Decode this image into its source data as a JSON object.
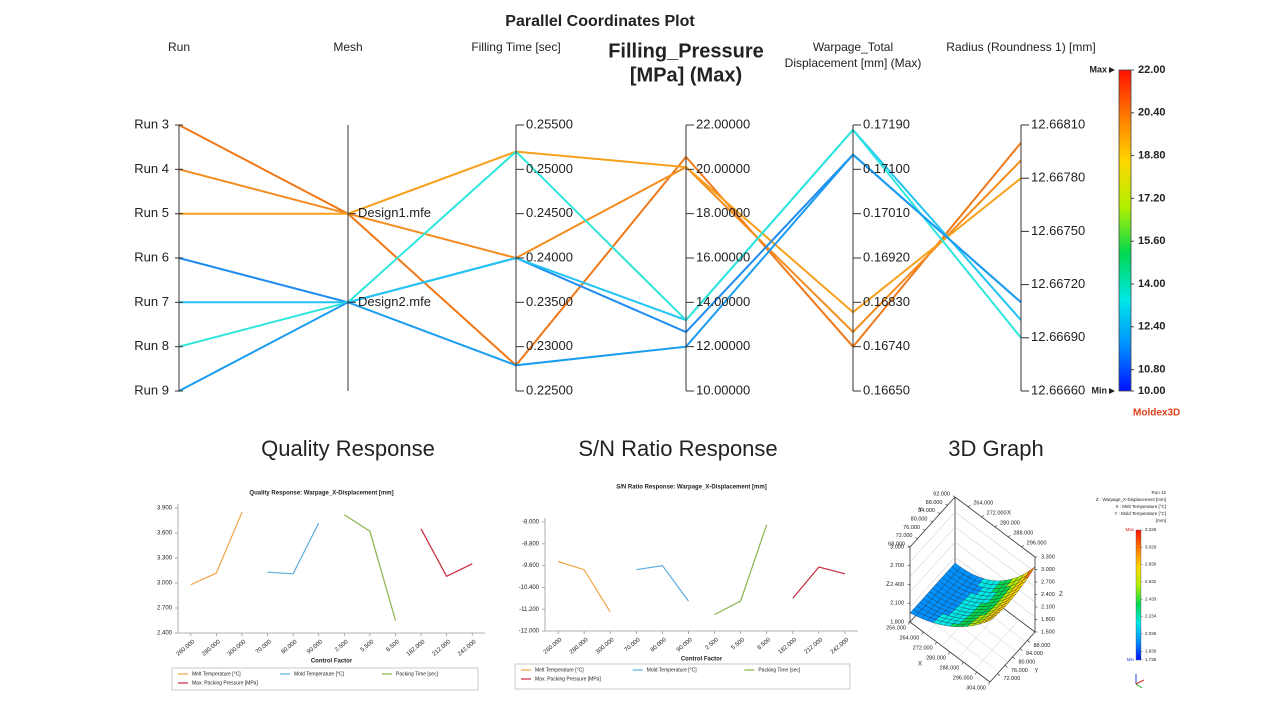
{
  "chart_data": [
    {
      "type": "parallel",
      "title": "Parallel Coordinates Plot",
      "axes": [
        {
          "label": [
            "Run"
          ],
          "categories": [
            "Run 3",
            "Run 4",
            "Run 5",
            "Run 6",
            "Run 7",
            "Run 8",
            "Run 9"
          ]
        },
        {
          "label": [
            "Mesh"
          ],
          "categories": [
            "Design1.mfe",
            "Design2.mfe"
          ]
        },
        {
          "label": [
            "Filling Time [sec]"
          ],
          "ylim": [
            0.225,
            0.255
          ],
          "yticks": [
            {
              "value": 0.255,
              "label": "0.25500"
            },
            {
              "value": 0.25,
              "label": "0.25000"
            },
            {
              "value": 0.245,
              "label": "0.24500"
            },
            {
              "value": 0.24,
              "label": "0.24000"
            },
            {
              "value": 0.235,
              "label": "0.23500"
            },
            {
              "value": 0.23,
              "label": "0.23000"
            },
            {
              "value": 0.225,
              "label": "0.22500"
            }
          ]
        },
        {
          "label": [
            "Filling_Pressure",
            "[MPa] (Max)"
          ],
          "selected": true,
          "ylim": [
            10,
            22
          ],
          "yticks": [
            {
              "value": 22,
              "label": "22.00000"
            },
            {
              "value": 20,
              "label": "20.00000"
            },
            {
              "value": 18,
              "label": "18.00000"
            },
            {
              "value": 16,
              "label": "16.00000"
            },
            {
              "value": 14,
              "label": "14.00000"
            },
            {
              "value": 12,
              "label": "12.00000"
            },
            {
              "value": 10,
              "label": "10.00000"
            }
          ]
        },
        {
          "label": [
            "Warpage_Total",
            "Displacement [mm] (Max)"
          ],
          "ylim": [
            0.1665,
            0.1719
          ],
          "yticks": [
            {
              "value": 0.1719,
              "label": "0.17190"
            },
            {
              "value": 0.171,
              "label": "0.17100"
            },
            {
              "value": 0.1701,
              "label": "0.17010"
            },
            {
              "value": 0.1692,
              "label": "0.16920"
            },
            {
              "value": 0.1683,
              "label": "0.16830"
            },
            {
              "value": 0.1674,
              "label": "0.16740"
            },
            {
              "value": 0.1665,
              "label": "0.16650"
            }
          ]
        },
        {
          "label": [
            "Radius (Roundness 1) [mm]"
          ],
          "ylim": [
            12.6666,
            12.6681
          ],
          "yticks": [
            {
              "value": 12.6681,
              "label": "12.66810"
            },
            {
              "value": 12.6678,
              "label": "12.66780"
            },
            {
              "value": 12.6675,
              "label": "12.66750"
            },
            {
              "value": 12.6672,
              "label": "12.66720"
            },
            {
              "value": 12.6669,
              "label": "12.66690"
            },
            {
              "value": 12.6666,
              "label": "12.66660"
            }
          ]
        }
      ],
      "lines": [
        {
          "color": "#f07818",
          "values": [
            "Run 3",
            "Design1.mfe",
            0.2279,
            20.56,
            0.1674,
            12.668
          ]
        },
        {
          "color": "#f48c1e",
          "values": [
            "Run 4",
            "Design1.mfe",
            0.24,
            20.1,
            0.1677,
            12.6679
          ]
        },
        {
          "color": "#f8a01c",
          "values": [
            "Run 5",
            "Design1.mfe",
            0.252,
            20.1,
            0.1681,
            12.6678
          ]
        },
        {
          "color": "#1e8cf0",
          "values": [
            "Run 6",
            "Design2.mfe",
            0.24,
            12.66,
            0.1713,
            12.6671
          ]
        },
        {
          "color": "#22c4f4",
          "values": [
            "Run 7",
            "Design2.mfe",
            0.24,
            13.2,
            0.1718,
            12.667
          ]
        },
        {
          "color": "#2ee6dc",
          "values": [
            "Run 8",
            "Design2.mfe",
            0.252,
            13.2,
            0.1718,
            12.6669
          ]
        },
        {
          "color": "#1a9cf0",
          "values": [
            "Run 9",
            "Design2.mfe",
            0.2279,
            12.0,
            0.1713,
            12.6671
          ]
        }
      ],
      "colorbar": {
        "max_label": "Max",
        "min_label": "Min",
        "lim": [
          10,
          22
        ],
        "ticks": [
          {
            "value": 22,
            "label": "22.00"
          },
          {
            "value": 20.4,
            "label": "20.40"
          },
          {
            "value": 18.8,
            "label": "18.80"
          },
          {
            "value": 17.2,
            "label": "17.20"
          },
          {
            "value": 15.6,
            "label": "15.60"
          },
          {
            "value": 14,
            "label": "14.00"
          },
          {
            "value": 12.4,
            "label": "12.40"
          },
          {
            "value": 10.8,
            "label": "10.80"
          },
          {
            "value": 10,
            "label": "10.00"
          }
        ],
        "colors": [
          "#0010ff",
          "#0090ff",
          "#00e8e8",
          "#00d850",
          "#b0f000",
          "#ffd800",
          "#ff7a00",
          "#ff1000"
        ]
      },
      "logo": "Moldex3D"
    },
    {
      "type": "line",
      "heading": "Quality Response",
      "title": "Quality Response: Warpage_X-Displacement [mm]",
      "x_label": "Control Factor",
      "categories": [
        "260.000",
        "280.000",
        "300.000",
        "70.000",
        "80.000",
        "90.000",
        "2.500",
        "5.500",
        "8.500",
        "182.000",
        "212.000",
        "242.000"
      ],
      "ylim": [
        2.4,
        3.9
      ],
      "yticks": [
        {
          "value": 2.4,
          "label": "2.400"
        },
        {
          "value": 2.7,
          "label": "2.700"
        },
        {
          "value": 3.0,
          "label": "3.000"
        },
        {
          "value": 3.3,
          "label": "3.300"
        },
        {
          "value": 3.6,
          "label": "3.600"
        },
        {
          "value": 3.9,
          "label": "3.900"
        }
      ],
      "series": [
        {
          "name": "Melt Temperature [°C]",
          "color": "#f3a446",
          "values": [
            2.98,
            3.12,
            3.85,
            null,
            null,
            null,
            null,
            null,
            null,
            null,
            null,
            null
          ]
        },
        {
          "name": "Mold Temperature [°C]",
          "color": "#5aaede",
          "values": [
            null,
            null,
            null,
            3.13,
            3.11,
            3.72,
            null,
            null,
            null,
            null,
            null,
            null
          ]
        },
        {
          "name": "Packing Time [sec]",
          "color": "#8ab448",
          "values": [
            null,
            null,
            null,
            null,
            null,
            null,
            3.82,
            3.62,
            2.55,
            null,
            null,
            null
          ]
        },
        {
          "name": "Max. Packing Pressure [MPa]",
          "color": "#c8283c",
          "values": [
            null,
            null,
            null,
            null,
            null,
            null,
            null,
            null,
            null,
            3.65,
            3.08,
            3.23
          ]
        }
      ]
    },
    {
      "type": "line",
      "heading": "S/N Ratio Response",
      "title": "S/N Ratio Response: Warpage_X-Displacement [mm]",
      "x_label": "Control Factor",
      "categories": [
        "260.000",
        "280.000",
        "300.000",
        "70.000",
        "80.000",
        "90.000",
        "2.500",
        "5.500",
        "8.500",
        "182.000",
        "212.000",
        "242.000"
      ],
      "ylim": [
        -12,
        -8
      ],
      "yticks": [
        {
          "value": -12,
          "label": "-12.000"
        },
        {
          "value": -11.2,
          "label": "-11.200"
        },
        {
          "value": -10.4,
          "label": "-10.400"
        },
        {
          "value": -9.6,
          "label": "-9.600"
        },
        {
          "value": -8.8,
          "label": "-8.800"
        },
        {
          "value": -8,
          "label": "-8.000"
        }
      ],
      "series": [
        {
          "name": "Melt Temperature [°C]",
          "color": "#f3a446",
          "values": [
            -9.45,
            -9.75,
            -11.3,
            null,
            null,
            null,
            null,
            null,
            null,
            null,
            null,
            null
          ]
        },
        {
          "name": "Mold Temperature [°C]",
          "color": "#5aaede",
          "values": [
            null,
            null,
            null,
            -9.75,
            -9.6,
            -10.9,
            null,
            null,
            null,
            null,
            null,
            null
          ]
        },
        {
          "name": "Packing Time [sec]",
          "color": "#8ab448",
          "values": [
            null,
            null,
            null,
            null,
            null,
            null,
            -11.4,
            -10.9,
            -8.1,
            null,
            null,
            null
          ]
        },
        {
          "name": "Max. Packing Pressure [MPa]",
          "color": "#c8283c",
          "values": [
            null,
            null,
            null,
            null,
            null,
            null,
            null,
            null,
            null,
            -10.8,
            -9.65,
            -9.9
          ]
        }
      ]
    },
    {
      "type": "surface3d",
      "heading": "3D Graph",
      "axes": [
        {
          "name": "Z",
          "lim": [
            1.8,
            3.0
          ],
          "ticks": [
            {
              "value": 3.0,
              "label": "3.000"
            },
            {
              "value": 2.7,
              "label": "2.700"
            },
            {
              "value": 2.4,
              "label": "2.400"
            },
            {
              "value": 2.1,
              "label": "2.100"
            },
            {
              "value": 1.8,
              "label": "1.800"
            }
          ]
        },
        {
          "name": "Y",
          "lim": [
            68,
            92
          ],
          "ticks": [
            {
              "value": 68,
              "label": "68.000"
            },
            {
              "value": 72,
              "label": "72.000"
            },
            {
              "value": 76,
              "label": "76.000"
            },
            {
              "value": 80,
              "label": "80.000"
            },
            {
              "value": 84,
              "label": "84.000"
            },
            {
              "value": 88,
              "label": "88.000"
            },
            {
              "value": 92,
              "label": "92.000"
            }
          ]
        },
        {
          "name": "X",
          "lim": [
            256,
            304
          ],
          "ticks": [
            {
              "value": 264,
              "label": "264.000"
            },
            {
              "value": 272,
              "label": "272.000"
            },
            {
              "value": 280,
              "label": "280.000"
            },
            {
              "value": 288,
              "label": "288.000"
            },
            {
              "value": 296,
              "label": "296.000"
            }
          ]
        },
        {
          "name": "X",
          "lim": [
            256,
            304
          ],
          "ticks": [
            {
              "value": 256,
              "label": "256.000"
            },
            {
              "value": 264,
              "label": "264.000"
            },
            {
              "value": 272,
              "label": "272.000"
            },
            {
              "value": 280,
              "label": "280.000"
            },
            {
              "value": 288,
              "label": "288.000"
            },
            {
              "value": 296,
              "label": "296.000"
            },
            {
              "value": 304,
              "label": "304.000"
            }
          ]
        },
        {
          "name": "Y",
          "lim": [
            68,
            92
          ],
          "ticks": [
            {
              "value": 72,
              "label": "72.000"
            },
            {
              "value": 76,
              "label": "76.000"
            },
            {
              "value": 80,
              "label": "80.000"
            },
            {
              "value": 84,
              "label": "84.000"
            },
            {
              "value": 88,
              "label": "88.000"
            }
          ]
        },
        {
          "name": "Z",
          "lim": [
            1.5,
            3.3
          ],
          "ticks": [
            {
              "value": 1.5,
              "label": "1.500"
            },
            {
              "value": 1.8,
              "label": "1.800"
            },
            {
              "value": 2.1,
              "label": "2.100"
            },
            {
              "value": 2.4,
              "label": "2.400"
            },
            {
              "value": 2.7,
              "label": "2.700"
            },
            {
              "value": 3.0,
              "label": "3.000"
            },
            {
              "value": 3.3,
              "label": "3.300"
            }
          ]
        }
      ],
      "legend": {
        "lines": [
          "Run 12",
          "Z : Warpage_X-Displacement [mm]",
          "X : Melt Temperature [°C]",
          "Y : Mold Temperature [°C]",
          "[mm]"
        ],
        "max_label": "Max",
        "min_label": "Min",
        "lim": [
          1.736,
          3.226
        ],
        "ticks": [
          {
            "value": 3.226,
            "label": "3.226"
          },
          {
            "value": 3.029,
            "label": "3.029"
          },
          {
            "value": 2.83,
            "label": "2.830"
          },
          {
            "value": 2.632,
            "label": "2.632"
          },
          {
            "value": 2.433,
            "label": "2.433"
          },
          {
            "value": 2.234,
            "label": "2.234"
          },
          {
            "value": 2.036,
            "label": "2.036"
          },
          {
            "value": 1.836,
            "label": "1.836"
          },
          {
            "value": 1.736,
            "label": "1.736"
          }
        ],
        "colors": [
          "#0010ff",
          "#0090ff",
          "#00e8e8",
          "#00d850",
          "#b0f000",
          "#ffd800",
          "#ff7a00",
          "#ff1000"
        ]
      }
    }
  ]
}
